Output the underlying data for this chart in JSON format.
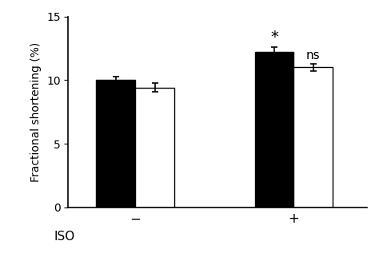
{
  "bar_values": [
    [
      10.0,
      9.4
    ],
    [
      12.2,
      11.0
    ]
  ],
  "bar_errors": [
    [
      0.3,
      0.35
    ],
    [
      0.4,
      0.3
    ]
  ],
  "bar_colors": [
    "#000000",
    "#ffffff"
  ],
  "bar_edgecolors": [
    "#000000",
    "#000000"
  ],
  "ylabel": "Fractional shortening (%)",
  "iso_label": "ISO",
  "ylim": [
    0,
    15
  ],
  "yticks": [
    0,
    5,
    10,
    15
  ],
  "star_text": "*",
  "star_fontsize": 14,
  "ns_text": "ns",
  "ns_fontsize": 11,
  "group_labels": [
    "−",
    "+"
  ],
  "bar_width": 0.32,
  "group_centers": [
    1.0,
    2.3
  ],
  "xlim": [
    0.45,
    2.9
  ]
}
